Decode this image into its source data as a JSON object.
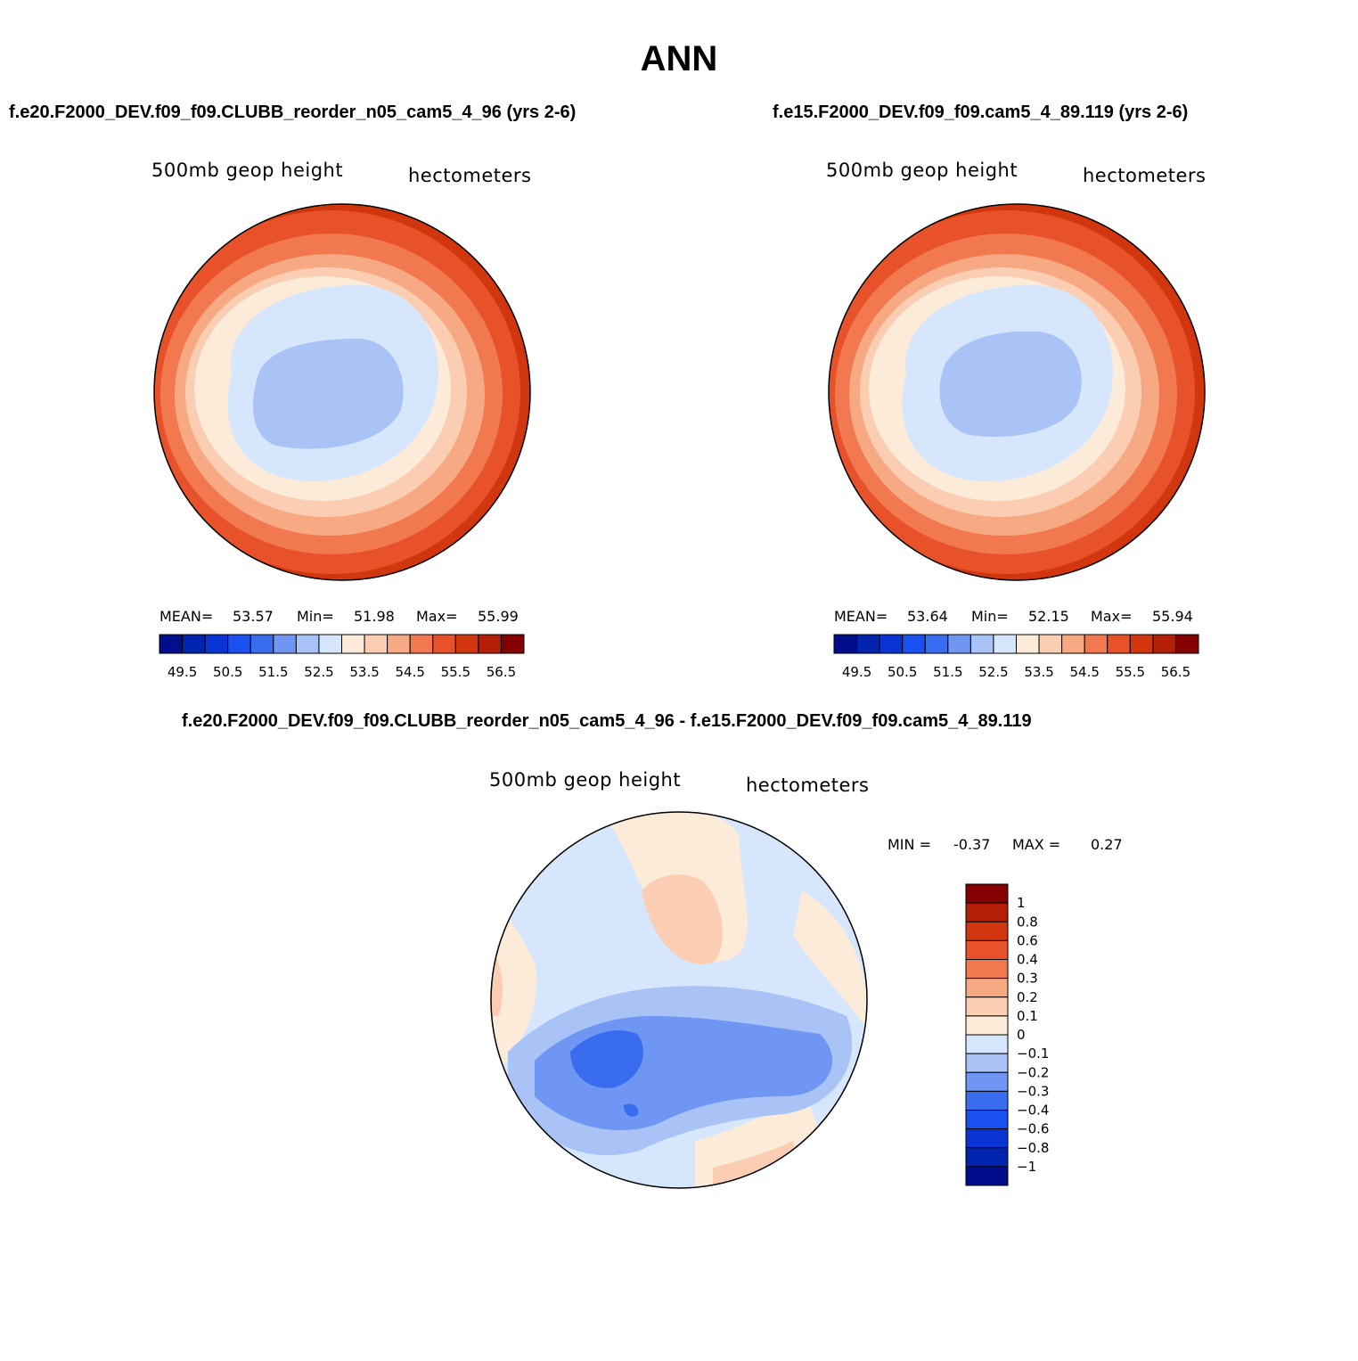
{
  "title": "ANN",
  "panels": {
    "left": {
      "case": "f.e20.F2000_DEV.f09_f09.CLUBB_reorder_n05_cam5_4_96 (yrs 2-6)",
      "variable": "500mb geop height",
      "units": "hectometers",
      "stats": {
        "mean_label": "MEAN=",
        "mean": "53.57",
        "min_label": "Min=",
        "min": "51.98",
        "max_label": "Max=",
        "max": "55.99"
      }
    },
    "right": {
      "case": "f.e15.F2000_DEV.f09_f09.cam5_4_89.119 (yrs 2-6)",
      "variable": "500mb geop height",
      "units": "hectometers",
      "stats": {
        "mean_label": "MEAN=",
        "mean": "53.64",
        "min_label": "Min=",
        "min": "52.15",
        "max_label": "Max=",
        "max": "55.94"
      }
    },
    "diff": {
      "case": "f.e20.F2000_DEV.f09_f09.CLUBB_reorder_n05_cam5_4_96 - f.e15.F2000_DEV.f09_f09.cam5_4_89.119",
      "variable": "500mb geop height",
      "units": "hectometers",
      "stats": {
        "min_label": "MIN =",
        "min": "-0.37",
        "max_label": "MAX =",
        "max": "0.27"
      }
    }
  },
  "chart_data": [
    {
      "type": "heatmap",
      "projection": "north-polar-stereographic",
      "title": "500mb geop height",
      "units": "hectometers",
      "summary": {
        "mean": 53.57,
        "min": 51.98,
        "max": 55.99
      },
      "colorbar": {
        "orientation": "horizontal",
        "levels": [
          49.5,
          50,
          50.5,
          51,
          51.5,
          52,
          52.5,
          53,
          53.5,
          54,
          54.5,
          55,
          55.5,
          56,
          56.5
        ],
        "tick_labels": [
          "49.5",
          "50.5",
          "51.5",
          "52.5",
          "53.5",
          "54.5",
          "55.5",
          "56.5"
        ],
        "colors": [
          "#000e8c",
          "#0023b0",
          "#0835d4",
          "#1a4ff0",
          "#3a6cf0",
          "#6f96f2",
          "#a9c3f6",
          "#d6e6fc",
          "#fdebd9",
          "#fbcdb2",
          "#f7a984",
          "#f2784f",
          "#e7522a",
          "#d2360f",
          "#b31e07",
          "#850000"
        ]
      }
    },
    {
      "type": "heatmap",
      "projection": "north-polar-stereographic",
      "title": "500mb geop height",
      "units": "hectometers",
      "summary": {
        "mean": 53.64,
        "min": 52.15,
        "max": 55.94
      },
      "colorbar": {
        "orientation": "horizontal",
        "levels": [
          49.5,
          50,
          50.5,
          51,
          51.5,
          52,
          52.5,
          53,
          53.5,
          54,
          54.5,
          55,
          55.5,
          56,
          56.5
        ],
        "tick_labels": [
          "49.5",
          "50.5",
          "51.5",
          "52.5",
          "53.5",
          "54.5",
          "55.5",
          "56.5"
        ],
        "colors": [
          "#000e8c",
          "#0023b0",
          "#0835d4",
          "#1a4ff0",
          "#3a6cf0",
          "#6f96f2",
          "#a9c3f6",
          "#d6e6fc",
          "#fdebd9",
          "#fbcdb2",
          "#f7a984",
          "#f2784f",
          "#e7522a",
          "#d2360f",
          "#b31e07",
          "#850000"
        ]
      }
    },
    {
      "type": "heatmap",
      "projection": "north-polar-stereographic",
      "title": "500mb geop height",
      "units": "hectometers",
      "summary": {
        "min": -0.37,
        "max": 0.27
      },
      "colorbar": {
        "orientation": "vertical",
        "levels": [
          1,
          0.8,
          0.6,
          0.4,
          0.3,
          0.2,
          0.1,
          0,
          -0.1,
          -0.2,
          -0.3,
          -0.4,
          -0.6,
          -0.8,
          -1
        ],
        "tick_labels": [
          "1",
          "0.8",
          "0.6",
          "0.4",
          "0.3",
          "0.2",
          "0.1",
          "0",
          "−0.1",
          "−0.2",
          "−0.3",
          "−0.4",
          "−0.6",
          "−0.8",
          "−1"
        ],
        "colors": [
          "#850000",
          "#b31e07",
          "#d2360f",
          "#e7522a",
          "#f2784f",
          "#f7a984",
          "#fbcdb2",
          "#fdebd9",
          "#d6e6fc",
          "#a9c3f6",
          "#6f96f2",
          "#3a6cf0",
          "#1a4ff0",
          "#0835d4",
          "#0023b0",
          "#000e8c"
        ]
      }
    }
  ]
}
